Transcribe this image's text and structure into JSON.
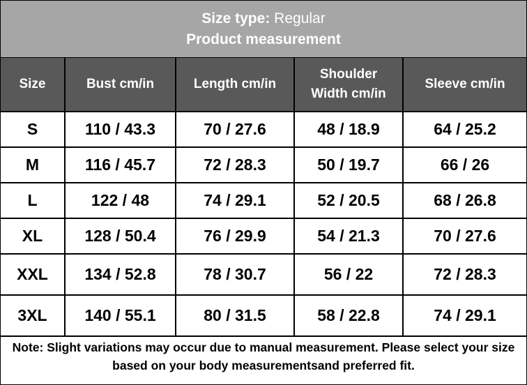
{
  "header": {
    "title_label": "Size type:",
    "title_value": "Regular",
    "subtitle": "Product measurement"
  },
  "table": {
    "columns": [
      "Size",
      "Bust cm/in",
      "Length cm/in",
      "Shoulder Width cm/in",
      "Sleeve cm/in"
    ],
    "rows": [
      [
        "S",
        "110 / 43.3",
        "70 / 27.6",
        "48 / 18.9",
        "64 / 25.2"
      ],
      [
        "M",
        "116 / 45.7",
        "72 / 28.3",
        "50 / 19.7",
        "66 / 26"
      ],
      [
        "L",
        "122 / 48",
        "74 / 29.1",
        "52 / 20.5",
        "68 / 26.8"
      ],
      [
        "XL",
        "128 / 50.4",
        "76 / 29.9",
        "54 / 21.3",
        "70 / 27.6"
      ],
      [
        "XXL",
        "134 / 52.8",
        "78 / 30.7",
        "56 / 22",
        "72 / 28.3"
      ],
      [
        "3XL",
        "140 / 55.1",
        "80 / 31.5",
        "58 / 22.8",
        "74 / 29.1"
      ]
    ]
  },
  "note": "Note: Slight variations may occur due to manual measurement. Please select your size based on your body measurementsand preferred fit."
}
